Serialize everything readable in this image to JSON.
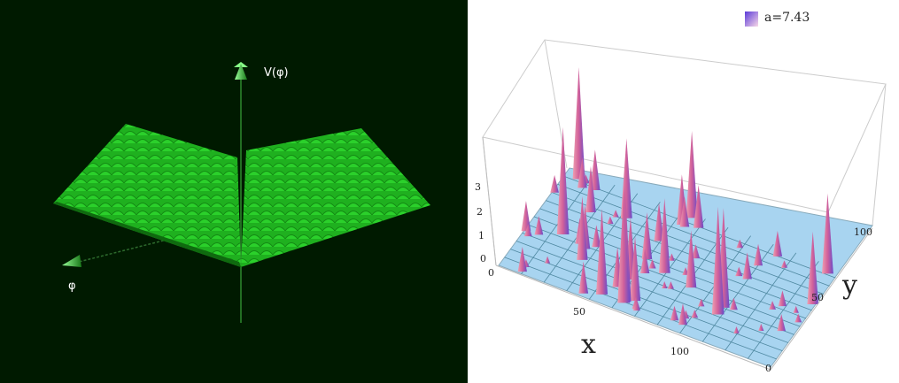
{
  "left_panel": {
    "vertical_axis_label": "V(φ)",
    "horizontal_axis_label": "φ",
    "surface_color": "#22c022",
    "background_color": "#001a00"
  },
  "chart_data": {
    "type": "surface",
    "legend": {
      "label": "a=7.43",
      "placement": "top-right"
    },
    "xlabel": "x",
    "ylabel": "y",
    "x_ticks": [
      "0",
      "50",
      "100"
    ],
    "y_ticks": [
      "0",
      "50",
      "100"
    ],
    "z_ticks": [
      "0",
      "1",
      "2",
      "3"
    ],
    "xlim": [
      0,
      128
    ],
    "ylim": [
      0,
      128
    ],
    "zlim": [
      0,
      3.5
    ],
    "colors": {
      "surface_base": "#a8d4f0",
      "peak": "#e07a9a",
      "mid": "#8a6ad8"
    }
  }
}
